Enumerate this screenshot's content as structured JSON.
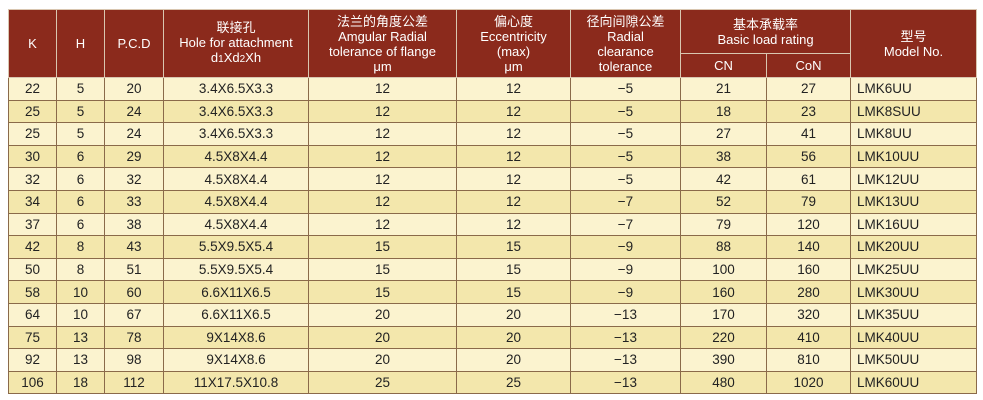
{
  "headers": {
    "k": "K",
    "h": "H",
    "pcd": "P.C.D",
    "hole_cn": "联接孔",
    "hole_en": "Hole for attachment",
    "hole_formula_a": "d",
    "hole_formula_b": "1",
    "hole_formula_c": "Xd",
    "hole_formula_d": "2",
    "hole_formula_e": "Xh",
    "flange_cn": "法兰的角度公差",
    "flange_en1": "Amgular Radial",
    "flange_en2": "tolerance of flange",
    "flange_unit": "μm",
    "ecc_cn": "偏心度",
    "ecc_en1": "Eccentricity",
    "ecc_en2": "(max)",
    "ecc_unit": "μm",
    "radial_cn": "径向间隙公差",
    "radial_en1": "Radial",
    "radial_en2": "clearance",
    "radial_en3": "tolerance",
    "load_cn": "基本承载率",
    "load_en": "Basic load rating",
    "cn": "CN",
    "con": "CoN",
    "model_cn": "型号",
    "model_en": "Model No."
  },
  "rows": [
    {
      "k": "22",
      "h": "5",
      "pcd": "20",
      "hole": "3.4X6.5X3.3",
      "flange": "12",
      "ecc": "12",
      "radial": "−5",
      "cn": "21",
      "con": "27",
      "model": "LMK6UU"
    },
    {
      "k": "25",
      "h": "5",
      "pcd": "24",
      "hole": "3.4X6.5X3.3",
      "flange": "12",
      "ecc": "12",
      "radial": "−5",
      "cn": "18",
      "con": "23",
      "model": "LMK8SUU"
    },
    {
      "k": "25",
      "h": "5",
      "pcd": "24",
      "hole": "3.4X6.5X3.3",
      "flange": "12",
      "ecc": "12",
      "radial": "−5",
      "cn": "27",
      "con": "41",
      "model": "LMK8UU"
    },
    {
      "k": "30",
      "h": "6",
      "pcd": "29",
      "hole": "4.5X8X4.4",
      "flange": "12",
      "ecc": "12",
      "radial": "−5",
      "cn": "38",
      "con": "56",
      "model": "LMK10UU"
    },
    {
      "k": "32",
      "h": "6",
      "pcd": "32",
      "hole": "4.5X8X4.4",
      "flange": "12",
      "ecc": "12",
      "radial": "−5",
      "cn": "42",
      "con": "61",
      "model": "LMK12UU"
    },
    {
      "k": "34",
      "h": "6",
      "pcd": "33",
      "hole": "4.5X8X4.4",
      "flange": "12",
      "ecc": "12",
      "radial": "−7",
      "cn": "52",
      "con": "79",
      "model": "LMK13UU"
    },
    {
      "k": "37",
      "h": "6",
      "pcd": "38",
      "hole": "4.5X8X4.4",
      "flange": "12",
      "ecc": "12",
      "radial": "−7",
      "cn": "79",
      "con": "120",
      "model": "LMK16UU"
    },
    {
      "k": "42",
      "h": "8",
      "pcd": "43",
      "hole": "5.5X9.5X5.4",
      "flange": "15",
      "ecc": "15",
      "radial": "−9",
      "cn": "88",
      "con": "140",
      "model": "LMK20UU"
    },
    {
      "k": "50",
      "h": "8",
      "pcd": "51",
      "hole": "5.5X9.5X5.4",
      "flange": "15",
      "ecc": "15",
      "radial": "−9",
      "cn": "100",
      "con": "160",
      "model": "LMK25UU"
    },
    {
      "k": "58",
      "h": "10",
      "pcd": "60",
      "hole": "6.6X11X6.5",
      "flange": "15",
      "ecc": "15",
      "radial": "−9",
      "cn": "160",
      "con": "280",
      "model": "LMK30UU"
    },
    {
      "k": "64",
      "h": "10",
      "pcd": "67",
      "hole": "6.6X11X6.5",
      "flange": "20",
      "ecc": "20",
      "radial": "−13",
      "cn": "170",
      "con": "320",
      "model": "LMK35UU"
    },
    {
      "k": "75",
      "h": "13",
      "pcd": "78",
      "hole": "9X14X8.6",
      "flange": "20",
      "ecc": "20",
      "radial": "−13",
      "cn": "220",
      "con": "410",
      "model": "LMK40UU"
    },
    {
      "k": "92",
      "h": "13",
      "pcd": "98",
      "hole": "9X14X8.6",
      "flange": "20",
      "ecc": "20",
      "radial": "−13",
      "cn": "390",
      "con": "810",
      "model": "LMK50UU"
    },
    {
      "k": "106",
      "h": "18",
      "pcd": "112",
      "hole": "11X17.5X10.8",
      "flange": "25",
      "ecc": "25",
      "radial": "−13",
      "cn": "480",
      "con": "1020",
      "model": "LMK60UU"
    }
  ]
}
